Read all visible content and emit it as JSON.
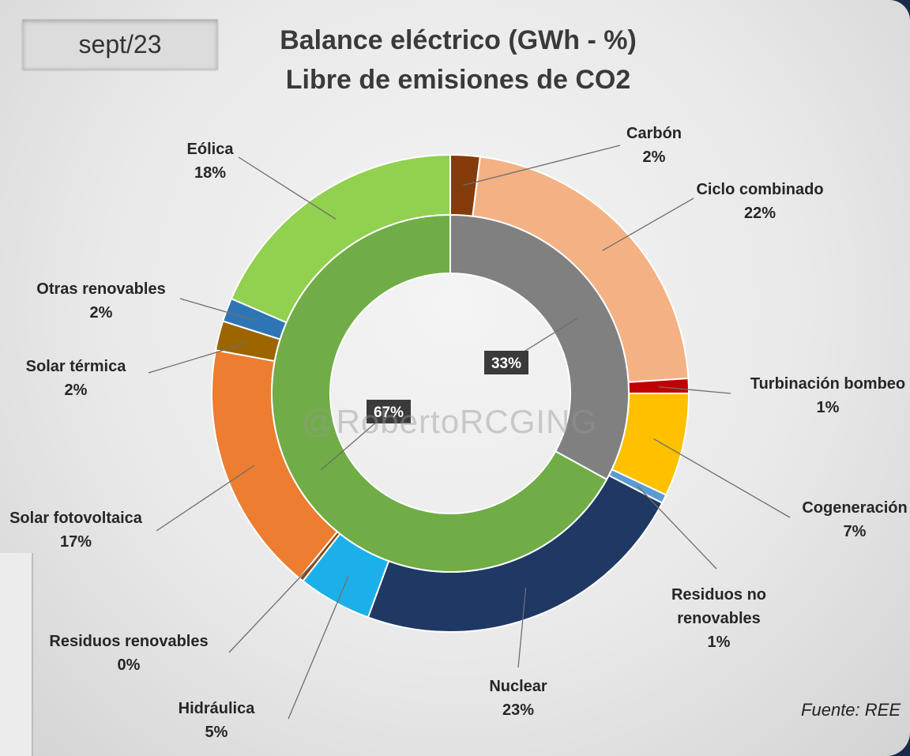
{
  "date": "sept/23",
  "title_line1": "Balance eléctrico (GWh - %)",
  "title_line2": "Libre de emisiones de CO2",
  "watermark": "@RobertoRCGING",
  "source": "Fuente: REE",
  "chart_data": {
    "type": "pie",
    "subtype": "double-donut",
    "outer_ring": [
      {
        "name": "Carbón",
        "percent": 2,
        "label": "2%",
        "color": "#843C0C"
      },
      {
        "name": "Ciclo combinado",
        "percent": 22,
        "label": "22%",
        "color": "#F4B183"
      },
      {
        "name": "Turbinación bombeo",
        "percent": 1,
        "label": "1%",
        "color": "#C00000"
      },
      {
        "name": "Cogeneración",
        "percent": 7,
        "label": "7%",
        "color": "#FFC000"
      },
      {
        "name": "Residuos no renovables",
        "percent": 1,
        "label": "1%",
        "color": "#5B9BD5"
      },
      {
        "name": "Nuclear",
        "percent": 23,
        "label": "23%",
        "color": "#203864"
      },
      {
        "name": "Hidráulica",
        "percent": 5,
        "label": "5%",
        "color": "#1CB0EA"
      },
      {
        "name": "Residuos renovables",
        "percent": 0,
        "label": "0%",
        "color": "#8B4513"
      },
      {
        "name": "Solar fotovoltaica",
        "percent": 17,
        "label": "17%",
        "color": "#ED7D31"
      },
      {
        "name": "Solar térmica",
        "percent": 2,
        "label": "2%",
        "color": "#9C6500"
      },
      {
        "name": "Otras renovables",
        "percent": 2,
        "label": "2%",
        "color": "#2E75B6"
      },
      {
        "name": "Eólica",
        "percent": 18,
        "label": "18%",
        "color": "#92D050"
      }
    ],
    "inner_ring": [
      {
        "percent": 33,
        "label": "33%",
        "color": "#808080"
      },
      {
        "percent": 67,
        "label": "67%",
        "color": "#70AD47"
      }
    ],
    "labels": {
      "carbon": {
        "name": "Carbón",
        "value": "2%"
      },
      "ciclo": {
        "name": "Ciclo combinado",
        "value": "22%"
      },
      "turbinacion": {
        "name": "Turbinación bombeo",
        "value": "1%"
      },
      "cogeneracion": {
        "name": "Cogeneración",
        "value": "7%"
      },
      "residuos_no": {
        "name1": "Residuos no",
        "name2": "renovables",
        "value": "1%"
      },
      "nuclear": {
        "name": "Nuclear",
        "value": "23%"
      },
      "hidraulica": {
        "name": "Hidráulica",
        "value": "5%"
      },
      "residuos_ren": {
        "name": "Residuos renovables",
        "value": "0%"
      },
      "solar_fv": {
        "name": "Solar fotovoltaica",
        "value": "17%"
      },
      "solar_term": {
        "name": "Solar térmica",
        "value": "2%"
      },
      "otras": {
        "name": "Otras renovables",
        "value": "2%"
      },
      "eolica": {
        "name": "Eólica",
        "value": "18%"
      }
    }
  }
}
